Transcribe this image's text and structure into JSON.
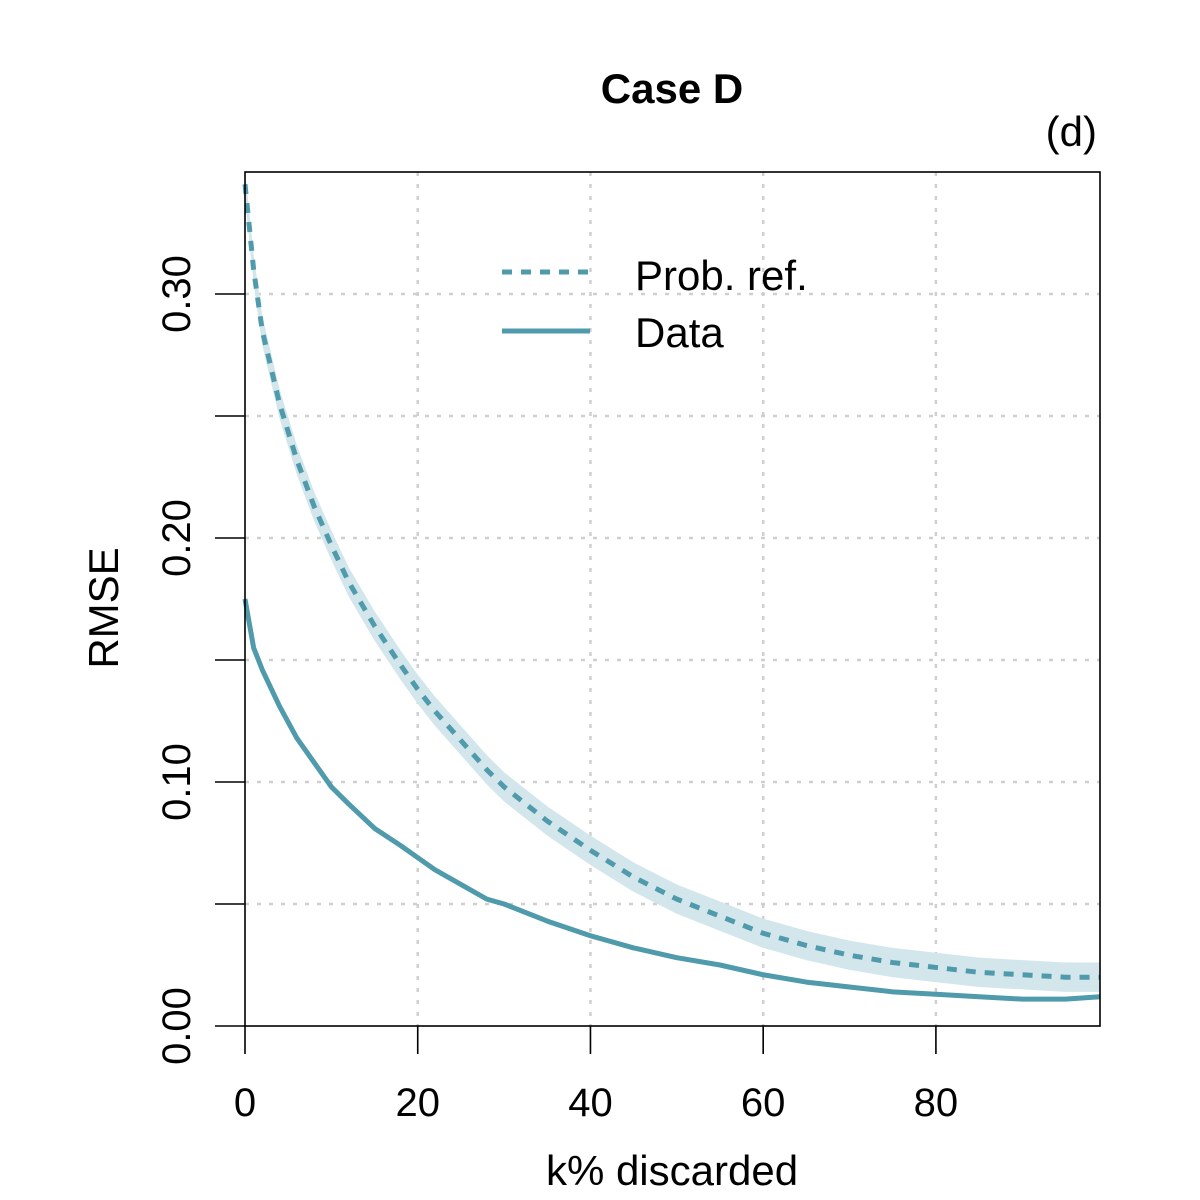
{
  "chart_data": {
    "type": "line",
    "title": "Case D",
    "panel_label": "(d)",
    "xlabel": "k% discarded",
    "ylabel": "RMSE",
    "xlim": [
      0,
      99
    ],
    "ylim": [
      0,
      0.35
    ],
    "grid": true,
    "legend_position": "top-center",
    "series_color": "#4f9aab",
    "band_color": "#d2e6ec",
    "x_ticks": [
      0,
      20,
      40,
      60,
      80
    ],
    "x_tick_labels": [
      "0",
      "20",
      "40",
      "60",
      "80"
    ],
    "y_ticks": [
      0,
      0.05,
      0.1,
      0.15,
      0.2,
      0.25,
      0.3
    ],
    "y_tick_labels": [
      "0.00",
      "",
      "0.10",
      "",
      "0.20",
      "",
      "0.30"
    ],
    "x": [
      0,
      1,
      2,
      4,
      6,
      8,
      10,
      12,
      15,
      18,
      20,
      22,
      25,
      28,
      30,
      35,
      40,
      45,
      50,
      55,
      60,
      65,
      70,
      75,
      80,
      85,
      90,
      95,
      99
    ],
    "series": [
      {
        "name": "Prob. ref.",
        "style": "dashed",
        "values": [
          0.345,
          0.31,
          0.285,
          0.255,
          0.232,
          0.213,
          0.197,
          0.182,
          0.164,
          0.148,
          0.138,
          0.129,
          0.117,
          0.105,
          0.098,
          0.084,
          0.072,
          0.061,
          0.052,
          0.045,
          0.038,
          0.033,
          0.029,
          0.026,
          0.024,
          0.022,
          0.021,
          0.02,
          0.02
        ],
        "band_half_width": 0.006
      },
      {
        "name": "Data",
        "style": "solid",
        "values": [
          0.175,
          0.155,
          0.146,
          0.131,
          0.118,
          0.108,
          0.098,
          0.091,
          0.081,
          0.074,
          0.069,
          0.064,
          0.058,
          0.052,
          0.05,
          0.043,
          0.037,
          0.032,
          0.028,
          0.025,
          0.021,
          0.018,
          0.016,
          0.014,
          0.013,
          0.012,
          0.011,
          0.011,
          0.012
        ]
      }
    ]
  }
}
